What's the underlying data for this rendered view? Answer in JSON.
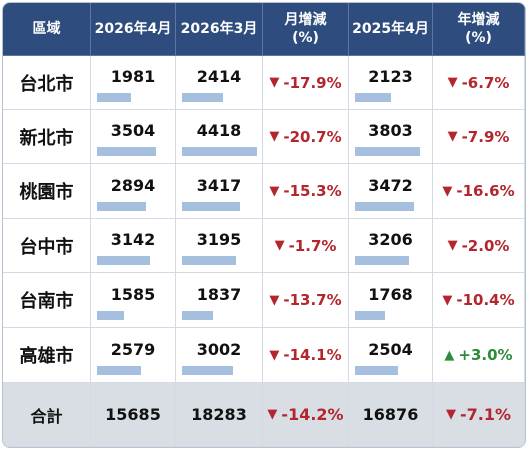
{
  "table": {
    "header": [
      "區域",
      "2026年4月",
      "2026年3月",
      "月增減\n(%)",
      "2025年4月",
      "年增減\n(%)"
    ],
    "rows": [
      [
        "台北市",
        1981,
        2414,
        "-17.9%",
        2123,
        "-6.7%"
      ],
      [
        "新北市",
        3504,
        4418,
        "-20.7%",
        3803,
        "-7.9%"
      ],
      [
        "桃園市",
        2894,
        3417,
        "-15.3%",
        3472,
        "-16.6%"
      ],
      [
        "台中市",
        3142,
        3195,
        "-1.7%",
        3206,
        "-2.0%"
      ],
      [
        "台南市",
        1585,
        1837,
        "-13.7%",
        1768,
        "-10.4%"
      ],
      [
        "高雄市",
        2579,
        3002,
        "-14.1%",
        2504,
        "+3.0%"
      ]
    ],
    "total": [
      "合計",
      15685,
      18283,
      "-14.2%",
      16876,
      "-7.1%"
    ]
  }
}
